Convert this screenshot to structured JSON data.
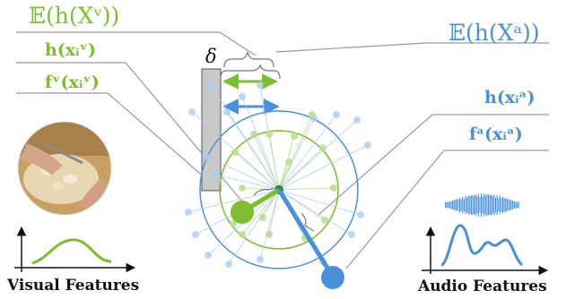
{
  "labels": {
    "exp_visual": "𝔼(h(Xᵛ))",
    "h_visual": "h(xᵢᵛ)",
    "f_visual": "fᵛ(xᵢᵛ)",
    "exp_audio": "𝔼(h(Xᵃ))",
    "h_audio": "h(xᵢᵃ)",
    "f_audio": "fᵃ(xᵢᵃ)",
    "delta": "δ",
    "visual_caption": "Visual Features",
    "audio_caption": "Audio Features"
  },
  "colors": {
    "visual": "#7cbe2d",
    "audio": "#4a90d9",
    "visual_light": "#b9dd91",
    "audio_light": "#a8c9ef",
    "leader": "#9a9a9a",
    "delta_bar": "#c8c8c8"
  },
  "icons": {
    "visual_thumbnail": "cooking-video-frame",
    "audio_waveform": "waveform-icon"
  }
}
